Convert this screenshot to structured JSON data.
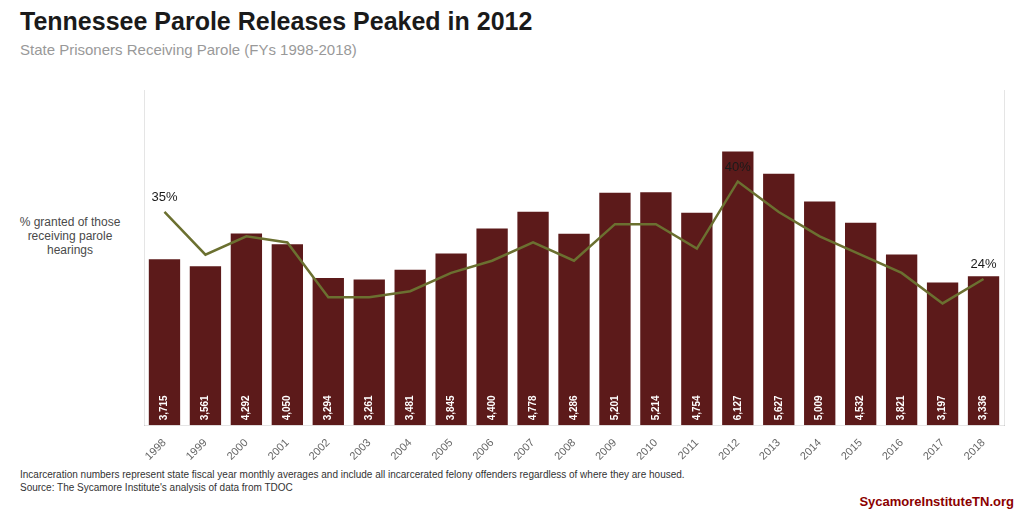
{
  "chart_data": {
    "type": "bar",
    "title": "Tennessee Parole Releases Peaked in 2012",
    "subtitle": "State Prisoners Receiving Parole (FYs 1998-2018)",
    "y_label": "% granted of those\nreceiving parole\nhearings",
    "categories": [
      "1998",
      "1999",
      "2000",
      "2001",
      "2002",
      "2003",
      "2004",
      "2005",
      "2006",
      "2007",
      "2008",
      "2009",
      "2010",
      "2011",
      "2012",
      "2013",
      "2014",
      "2015",
      "2016",
      "2017",
      "2018"
    ],
    "series": [
      {
        "type": "bar",
        "color": "#5C1A1A",
        "values": [
          3715,
          3561,
          4292,
          4050,
          3294,
          3261,
          3481,
          3845,
          4400,
          4778,
          4286,
          5201,
          5214,
          4754,
          6127,
          5627,
          5009,
          4532,
          3821,
          3197,
          3336
        ],
        "value_labels": [
          "3,715",
          "3,561",
          "4,292",
          "4,050",
          "3,294",
          "3,261",
          "3,481",
          "3,845",
          "4,400",
          "4,778",
          "4,286",
          "5,201",
          "5,214",
          "4,754",
          "6,127",
          "5,627",
          "5,009",
          "4,532",
          "3,821",
          "3,197",
          "3,336"
        ],
        "data_labels": true
      },
      {
        "type": "line",
        "color": "#6B7030",
        "axis": "y2",
        "values": [
          35,
          28,
          31,
          30,
          21,
          21,
          22,
          25,
          27,
          30,
          27,
          33,
          33,
          29,
          40,
          35,
          31,
          28,
          25,
          20,
          24
        ]
      }
    ],
    "ylim": [
      0,
      7500
    ],
    "y2lim": [
      0,
      55
    ],
    "tick_labels": "x",
    "grid": false,
    "annotations": [
      {
        "text": "35%",
        "category": "1998",
        "value": 35,
        "axis": "y2"
      },
      {
        "text": "40%",
        "category": "2012",
        "value": 40,
        "axis": "y2"
      },
      {
        "text": "24%",
        "category": "2018",
        "value": 24,
        "axis": "y2"
      }
    ],
    "footer": [
      "Incarceration numbers represent state fiscal year monthly averages and include all incarcerated felony offenders regardless of where they are housed.",
      "Source: The Sycamore Institute's analysis of data from TDOC"
    ],
    "footer_right": "SycamoreInstituteTN.org"
  }
}
